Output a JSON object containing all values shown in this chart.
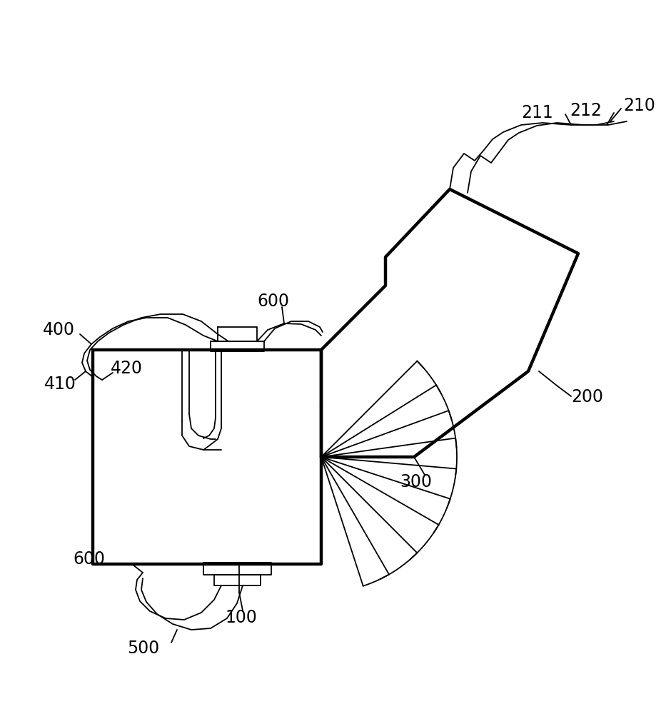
{
  "bg_color": "#ffffff",
  "lc": "#000000",
  "tlw": 3.2,
  "nlw": 1.3,
  "fs": 17
}
